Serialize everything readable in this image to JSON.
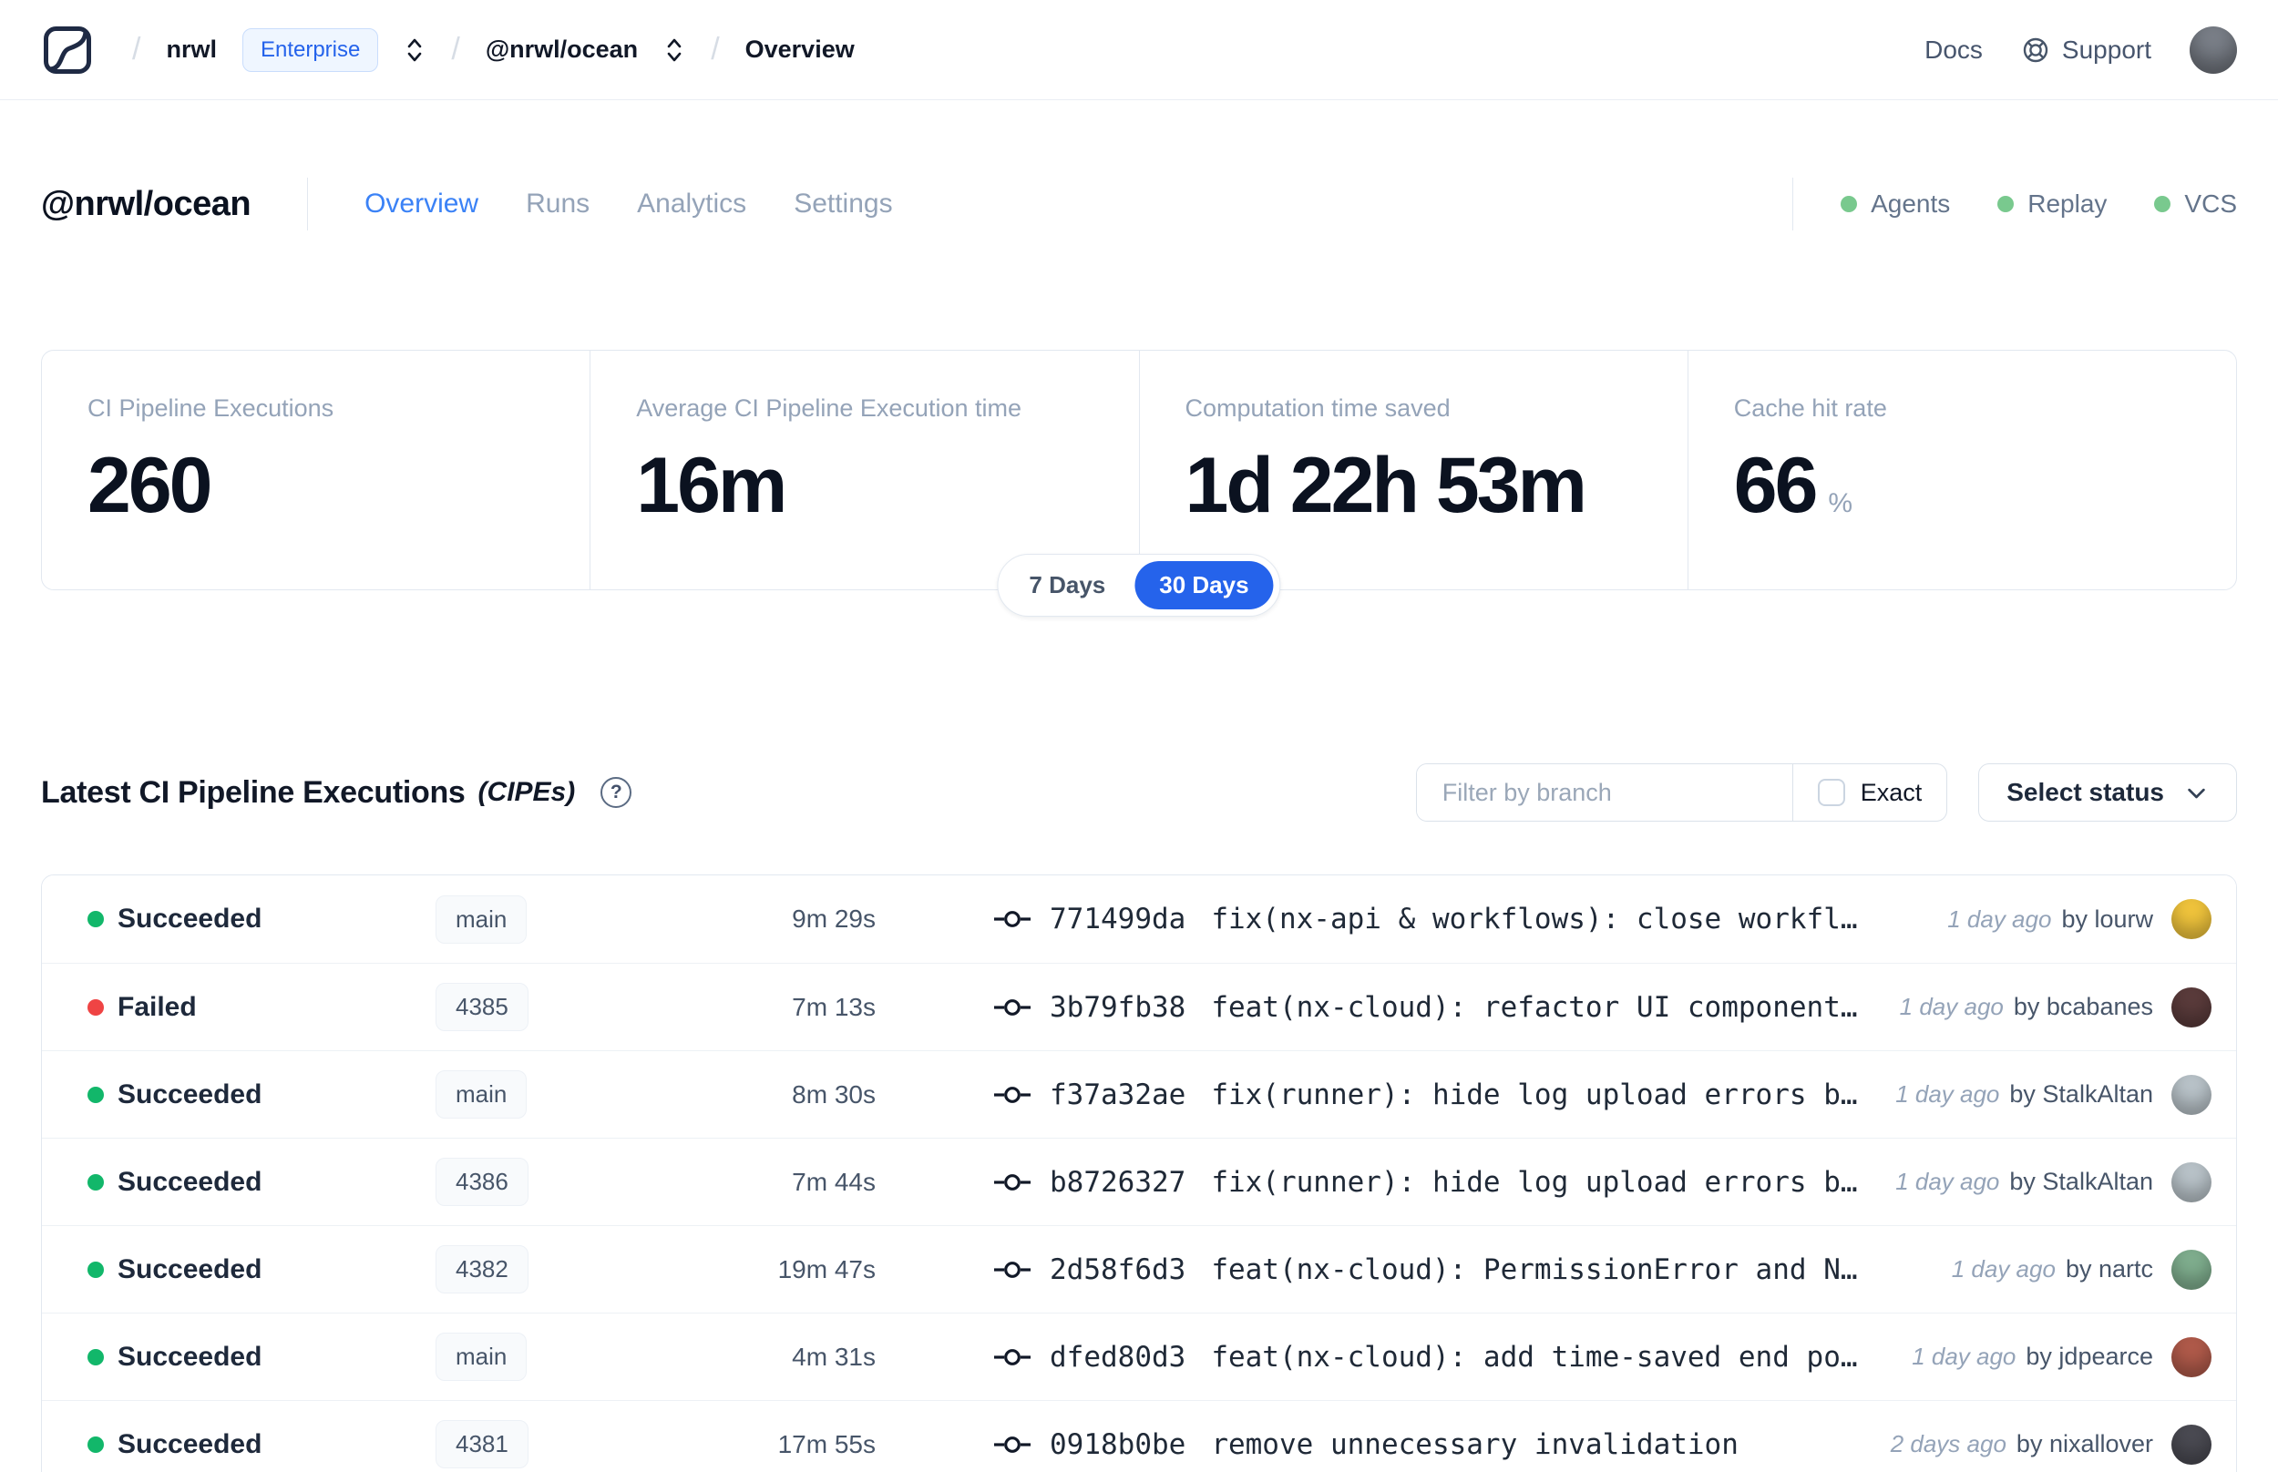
{
  "navbar": {
    "separator": "/",
    "org": "nrwl",
    "plan_badge": "Enterprise",
    "workspace": "@nrwl/ocean",
    "page": "Overview",
    "docs_label": "Docs",
    "support_label": "Support",
    "avatar_color": "#7a7f88"
  },
  "workspace_header": {
    "title": "@nrwl/ocean",
    "tabs": [
      {
        "label": "Overview",
        "active": true
      },
      {
        "label": "Runs",
        "active": false
      },
      {
        "label": "Analytics",
        "active": false
      },
      {
        "label": "Settings",
        "active": false
      }
    ],
    "statuses": [
      {
        "label": "Agents",
        "dot_color": "#79c98e"
      },
      {
        "label": "Replay",
        "dot_color": "#79c98e"
      },
      {
        "label": "VCS",
        "dot_color": "#79c98e"
      }
    ]
  },
  "stats": {
    "cards": [
      {
        "label": "CI Pipeline Executions",
        "value": "260"
      },
      {
        "label": "Average CI Pipeline Execution time",
        "value": "16m"
      },
      {
        "label": "Computation time saved",
        "value": "1d 22h 53m"
      },
      {
        "label": "Cache hit rate",
        "value": "66",
        "suffix": "%"
      }
    ],
    "range_toggle": {
      "options": [
        "7 Days",
        "30 Days"
      ],
      "selected": "30 Days"
    }
  },
  "cipe_section": {
    "title": "Latest CI Pipeline Executions",
    "title_suffix": "(CIPEs)",
    "help_glyph": "?",
    "filter": {
      "placeholder": "Filter by branch",
      "exact_label": "Exact",
      "status_button": "Select status"
    },
    "rows": [
      {
        "status": "Succeeded",
        "status_color": "#12b76a",
        "branch": "main",
        "duration": "9m 29s",
        "commit": "771499da",
        "message": "fix(nx-api & workflows): close workfl…",
        "time": "1 day ago",
        "author": "by lourw",
        "avatar_color": "#f0c43c"
      },
      {
        "status": "Failed",
        "status_color": "#ef4444",
        "branch": "4385",
        "duration": "7m 13s",
        "commit": "3b79fb38",
        "message": "feat(nx-cloud): refactor UI component…",
        "time": "1 day ago",
        "author": "by bcabanes",
        "avatar_color": "#5a3b3b"
      },
      {
        "status": "Succeeded",
        "status_color": "#12b76a",
        "branch": "main",
        "duration": "8m 30s",
        "commit": "f37a32ae",
        "message": "fix(runner): hide log upload errors b…",
        "time": "1 day ago",
        "author": "by StalkAltan",
        "avatar_color": "#b9c3c9"
      },
      {
        "status": "Succeeded",
        "status_color": "#12b76a",
        "branch": "4386",
        "duration": "7m 44s",
        "commit": "b8726327",
        "message": "fix(runner): hide log upload errors b…",
        "time": "1 day ago",
        "author": "by StalkAltan",
        "avatar_color": "#b9c3c9"
      },
      {
        "status": "Succeeded",
        "status_color": "#12b76a",
        "branch": "4382",
        "duration": "19m 47s",
        "commit": "2d58f6d3",
        "message": "feat(nx-cloud): PermissionError and N…",
        "time": "1 day ago",
        "author": "by nartc",
        "avatar_color": "#7fae8e"
      },
      {
        "status": "Succeeded",
        "status_color": "#12b76a",
        "branch": "main",
        "duration": "4m 31s",
        "commit": "dfed80d3",
        "message": "feat(nx-cloud): add time-saved end po…",
        "time": "1 day ago",
        "author": "by jdpearce",
        "avatar_color": "#b05a4a"
      },
      {
        "status": "Succeeded",
        "status_color": "#12b76a",
        "branch": "4381",
        "duration": "17m 55s",
        "commit": "0918b0be",
        "message": "remove unnecessary invalidation",
        "time": "2 days ago",
        "author": "by nixallover",
        "avatar_color": "#4a4a52"
      }
    ]
  }
}
